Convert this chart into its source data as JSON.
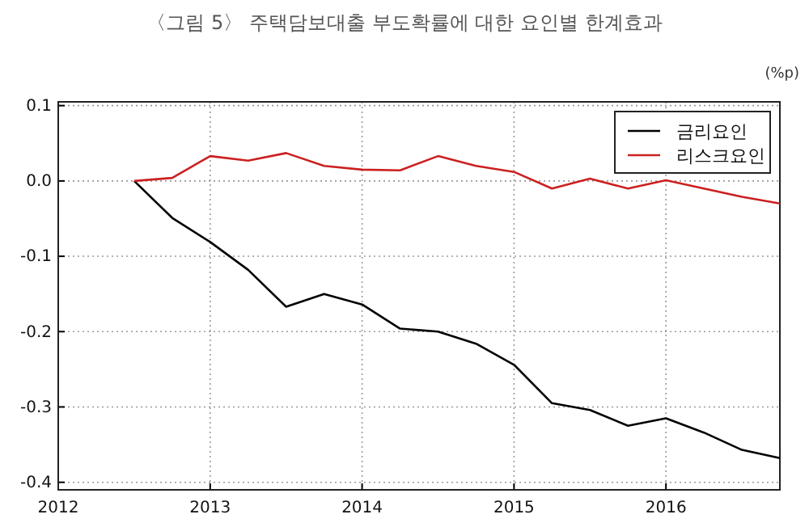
{
  "chart_data": {
    "type": "line",
    "title": "〈그림 5〉 주택담보대출 부도확률에 대한 요인별 한계효과",
    "ylabel": "(%p)",
    "x": [
      2012.5,
      2012.75,
      2013,
      2013.25,
      2013.5,
      2013.75,
      2014,
      2014.25,
      2014.5,
      2014.75,
      2015,
      2015.25,
      2015.5,
      2015.75,
      2016,
      2016.25,
      2016.5,
      2016.75
    ],
    "series": [
      {
        "name": "금리요인",
        "color": "#000000",
        "values": [
          0,
          -0.049,
          -0.081,
          -0.118,
          -0.167,
          -0.15,
          -0.164,
          -0.196,
          -0.2,
          -0.216,
          -0.244,
          -0.295,
          -0.304,
          -0.325,
          -0.315,
          -0.334,
          -0.357,
          -0.368
        ]
      },
      {
        "name": "리스크요인",
        "color": "#cc2020",
        "values": [
          0,
          0.004,
          0.033,
          0.027,
          0.037,
          0.02,
          0.015,
          0.014,
          0.033,
          0.02,
          0.012,
          -0.01,
          0.003,
          -0.01,
          0.001,
          -0.01,
          -0.021,
          -0.03
        ]
      }
    ],
    "xlim": [
      2012,
      2016.75
    ],
    "xticks": [
      2012,
      2013,
      2014,
      2015,
      2016
    ],
    "ylim": [
      -0.41,
      0.105
    ],
    "yticks": [
      0.1,
      {
        "value": 0,
        "label": "0.0"
      },
      -0.1,
      -0.2,
      -0.3,
      -0.4
    ],
    "grid": true,
    "legend": "top right",
    "marker": "none",
    "line_style": "solid"
  }
}
